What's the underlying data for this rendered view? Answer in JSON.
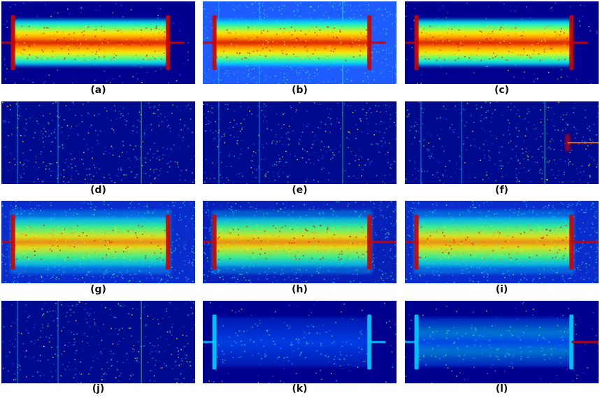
{
  "panels": [
    {
      "label": "(a)",
      "object": "bright",
      "bg": "#00008f",
      "noise": "low",
      "pin_right": "thin"
    },
    {
      "label": "(b)",
      "object": "bright",
      "bg": "#1e5cff",
      "noise": "high",
      "pin_right": "thin"
    },
    {
      "label": "(c)",
      "object": "bright",
      "bg": "#00008f",
      "noise": "low",
      "pin_right": "thin"
    },
    {
      "label": "(d)",
      "object": "none",
      "bg": "#000a8f",
      "noise": "sparse",
      "pin_right": "none"
    },
    {
      "label": "(e)",
      "object": "none",
      "bg": "#000a8f",
      "noise": "sparse",
      "pin_right": "none"
    },
    {
      "label": "(f)",
      "object": "spot",
      "bg": "#000a8f",
      "noise": "sparse",
      "pin_right": "spot"
    },
    {
      "label": "(g)",
      "object": "medium",
      "bg": "#0a2ccc",
      "noise": "high",
      "pin_right": "none"
    },
    {
      "label": "(h)",
      "object": "medium",
      "bg": "#0820b8",
      "noise": "high",
      "pin_right": "long"
    },
    {
      "label": "(i)",
      "object": "medium",
      "bg": "#0a2ccc",
      "noise": "high",
      "pin_right": "long"
    },
    {
      "label": "(j)",
      "object": "none",
      "bg": "#000a8f",
      "noise": "sparse",
      "pin_right": "none"
    },
    {
      "label": "(k)",
      "object": "faint",
      "bg": "#00008f",
      "noise": "low",
      "pin_right": "thin"
    },
    {
      "label": "(l)",
      "object": "faint2",
      "bg": "#00008f",
      "noise": "low",
      "pin_right": "long"
    }
  ],
  "colors": {
    "deep": "#00008f",
    "blue": "#0050ff",
    "cyan": "#00d0ff",
    "green": "#40ff80",
    "yellow": "#ffee00",
    "orange": "#ff8000",
    "red": "#d00000"
  }
}
